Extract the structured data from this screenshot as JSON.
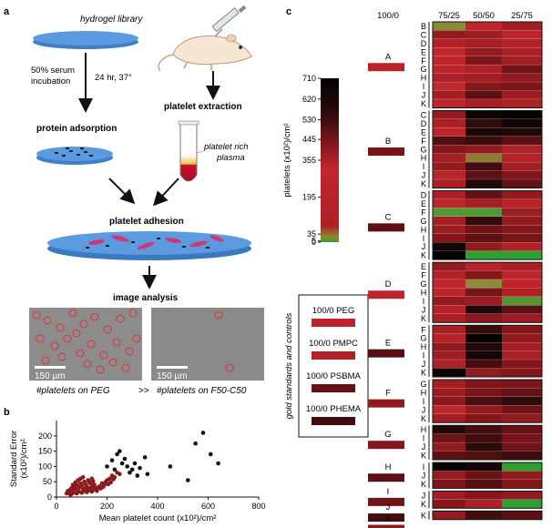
{
  "panel_a": {
    "label": "a",
    "hydrogel_library": "hydrogel library",
    "serum_incubation": "50% serum\nincubation",
    "incubation_conditions": "24 hr, 37°",
    "protein_adsorption": "protein adsorption",
    "platelet_extraction": "platelet extraction",
    "platelet_rich_plasma": "platelet rich\nplasma",
    "platelet_adhesion": "platelet adhesion",
    "image_analysis": "image analysis",
    "scalebar_left": "150 µm",
    "scalebar_right": "150 µm",
    "caption_left": "#platelets on PEG",
    "comparison": ">>",
    "caption_right": "#platelets on F50-C50"
  },
  "panel_b": {
    "label": "b",
    "chart_data": {
      "type": "scatter",
      "xlabel": "Mean platelet count (x10²)/cm²",
      "ylabel": "Standard Error (x10²)/cm²",
      "xlim": [
        0,
        800
      ],
      "ylim": [
        0,
        250
      ],
      "xticks": [
        0,
        200,
        400,
        600,
        800
      ],
      "yticks": [
        0,
        50,
        100,
        150,
        200
      ],
      "series": [
        {
          "color": "#8b1a1f",
          "points": [
            [
              40,
              12
            ],
            [
              50,
              18
            ],
            [
              55,
              25
            ],
            [
              60,
              30
            ],
            [
              65,
              22
            ],
            [
              70,
              35
            ],
            [
              75,
              28
            ],
            [
              80,
              40
            ],
            [
              85,
              20
            ],
            [
              90,
              32
            ],
            [
              95,
              45
            ],
            [
              100,
              38
            ],
            [
              105,
              26
            ],
            [
              110,
              50
            ],
            [
              115,
              42
            ],
            [
              120,
              35
            ],
            [
              125,
              55
            ],
            [
              130,
              48
            ],
            [
              135,
              30
            ],
            [
              140,
              60
            ],
            [
              145,
              52
            ],
            [
              150,
              40
            ],
            [
              60,
              10
            ],
            [
              70,
              15
            ],
            [
              80,
              12
            ],
            [
              90,
              18
            ],
            [
              100,
              14
            ],
            [
              110,
              20
            ],
            [
              120,
              16
            ],
            [
              130,
              22
            ],
            [
              140,
              18
            ],
            [
              150,
              25
            ],
            [
              160,
              30
            ],
            [
              170,
              35
            ],
            [
              180,
              45
            ],
            [
              190,
              40
            ],
            [
              200,
              55
            ],
            [
              210,
              60
            ],
            [
              220,
              70
            ],
            [
              230,
              65
            ],
            [
              240,
              80
            ],
            [
              250,
              75
            ],
            [
              160,
              20
            ],
            [
              175,
              28
            ],
            [
              185,
              33
            ],
            [
              195,
              50
            ],
            [
              205,
              42
            ],
            [
              215,
              48
            ],
            [
              225,
              58
            ],
            [
              45,
              20
            ],
            [
              55,
              8
            ],
            [
              65,
              40
            ],
            [
              75,
              48
            ],
            [
              85,
              55
            ],
            [
              95,
              60
            ],
            [
              105,
              65
            ],
            [
              115,
              30
            ],
            [
              125,
              25
            ],
            [
              135,
              44
            ],
            [
              145,
              34
            ]
          ]
        },
        {
          "color": "#111111",
          "points": [
            [
              200,
              100
            ],
            [
              220,
              120
            ],
            [
              230,
              90
            ],
            [
              240,
              140
            ],
            [
              250,
              150
            ],
            [
              260,
              110
            ],
            [
              270,
              125
            ],
            [
              280,
              100
            ],
            [
              290,
              80
            ],
            [
              300,
              90
            ],
            [
              310,
              110
            ],
            [
              320,
              70
            ],
            [
              330,
              95
            ],
            [
              350,
              130
            ],
            [
              360,
              75
            ],
            [
              450,
              100
            ],
            [
              520,
              55
            ],
            [
              550,
              175
            ],
            [
              580,
              210
            ],
            [
              610,
              140
            ],
            [
              640,
              110
            ]
          ]
        }
      ]
    }
  },
  "panel_c": {
    "label": "c",
    "chart_data": {
      "type": "heatmap",
      "column_headers": [
        "100/0",
        "75/25",
        "50/50",
        "25/75"
      ],
      "colorbar": {
        "title": "platelets (x10²)/cm²",
        "ticks": [
          0,
          5,
          35,
          195,
          355,
          445,
          530,
          620,
          710
        ]
      },
      "gold_standards_title": "gold standards and controls",
      "controls": [
        {
          "label": "100/0 PEG",
          "value": 140
        },
        {
          "label": "100/0 PMPC",
          "value": 60
        },
        {
          "label": "100/0 PSBMA",
          "value": 400
        },
        {
          "label": "100/0 PHEMA",
          "value": 480
        }
      ],
      "blocks": [
        {
          "primary": "A",
          "primary_value": 120,
          "rows": [
            "B",
            "C",
            "D",
            "E",
            "F",
            "G",
            "H",
            "I",
            "J",
            "K"
          ],
          "values": [
            [
              5,
              200,
              260
            ],
            [
              300,
              280,
              150
            ],
            [
              60,
              260,
              230
            ],
            [
              200,
              300,
              250
            ],
            [
              180,
              350,
              260
            ],
            [
              210,
              250,
              380
            ],
            [
              240,
              270,
              300
            ],
            [
              190,
              330,
              350
            ],
            [
              260,
              420,
              280
            ],
            [
              200,
              260,
              240
            ]
          ]
        },
        {
          "primary": "B",
          "primary_value": 360,
          "rows": [
            "C",
            "D",
            "E",
            "F",
            "G",
            "H",
            "I",
            "J",
            "K"
          ],
          "values": [
            [
              300,
              650,
              700
            ],
            [
              250,
              520,
              620
            ],
            [
              200,
              600,
              560
            ],
            [
              450,
              500,
              420
            ],
            [
              330,
              300,
              240
            ],
            [
              260,
              10,
              90
            ],
            [
              300,
              480,
              260
            ],
            [
              210,
              420,
              340
            ],
            [
              250,
              560,
              400
            ]
          ]
        },
        {
          "primary": "C",
          "primary_value": 420,
          "rows": [
            "D",
            "E",
            "F",
            "G",
            "H",
            "I",
            "J",
            "K"
          ],
          "values": [
            [
              250,
              400,
              300
            ],
            [
              200,
              260,
              220
            ],
            [
              2,
              2,
              280
            ],
            [
              260,
              520,
              300
            ],
            [
              280,
              380,
              330
            ],
            [
              330,
              420,
              360
            ],
            [
              620,
              300,
              230
            ],
            [
              700,
              0,
              0
            ]
          ]
        },
        {
          "primary": "D",
          "primary_value": 170,
          "rows": [
            "E",
            "F",
            "G",
            "H",
            "I",
            "J",
            "K"
          ],
          "values": [
            [
              300,
              120,
              250
            ],
            [
              230,
              330,
              210
            ],
            [
              200,
              5,
              160
            ],
            [
              160,
              360,
              40
            ],
            [
              300,
              280,
              2
            ],
            [
              220,
              560,
              420
            ],
            [
              250,
              320,
              280
            ]
          ]
        },
        {
          "primary": "E",
          "primary_value": 440,
          "rows": [
            "F",
            "G",
            "H",
            "I",
            "J",
            "K"
          ],
          "values": [
            [
              250,
              500,
              330
            ],
            [
              220,
              680,
              300
            ],
            [
              310,
              560,
              260
            ],
            [
              270,
              620,
              250
            ],
            [
              240,
              470,
              330
            ],
            [
              660,
              300,
              330
            ]
          ]
        },
        {
          "primary": "F",
          "primary_value": 300,
          "rows": [
            "G",
            "H",
            "I",
            "J",
            "K"
          ],
          "values": [
            [
              260,
              340,
              350
            ],
            [
              280,
              360,
              400
            ],
            [
              320,
              460,
              520
            ],
            [
              200,
              300,
              380
            ],
            [
              260,
              330,
              300
            ]
          ]
        },
        {
          "primary": "G",
          "primary_value": 330,
          "rows": [
            "H",
            "I",
            "J",
            "K"
          ],
          "values": [
            [
              560,
              480,
              400
            ],
            [
              380,
              480,
              360
            ],
            [
              300,
              530,
              380
            ],
            [
              420,
              450,
              500
            ]
          ]
        },
        {
          "primary": "H",
          "primary_value": 420,
          "rows": [
            "I",
            "J",
            "K"
          ],
          "values": [
            [
              660,
              620,
              0
            ],
            [
              290,
              390,
              300
            ],
            [
              350,
              440,
              330
            ]
          ]
        },
        {
          "primary": "I",
          "primary_value": 380,
          "rows": [
            "J",
            "K"
          ],
          "values": [
            [
              270,
              330,
              300
            ],
            [
              330,
              240,
              0
            ]
          ]
        },
        {
          "primary": "J",
          "primary_value": 470,
          "rows": [
            "K"
          ],
          "values": [
            [
              300,
              480,
              420
            ]
          ]
        },
        {
          "primary": "K",
          "primary_value": 300,
          "rows": [],
          "values": []
        }
      ]
    }
  }
}
